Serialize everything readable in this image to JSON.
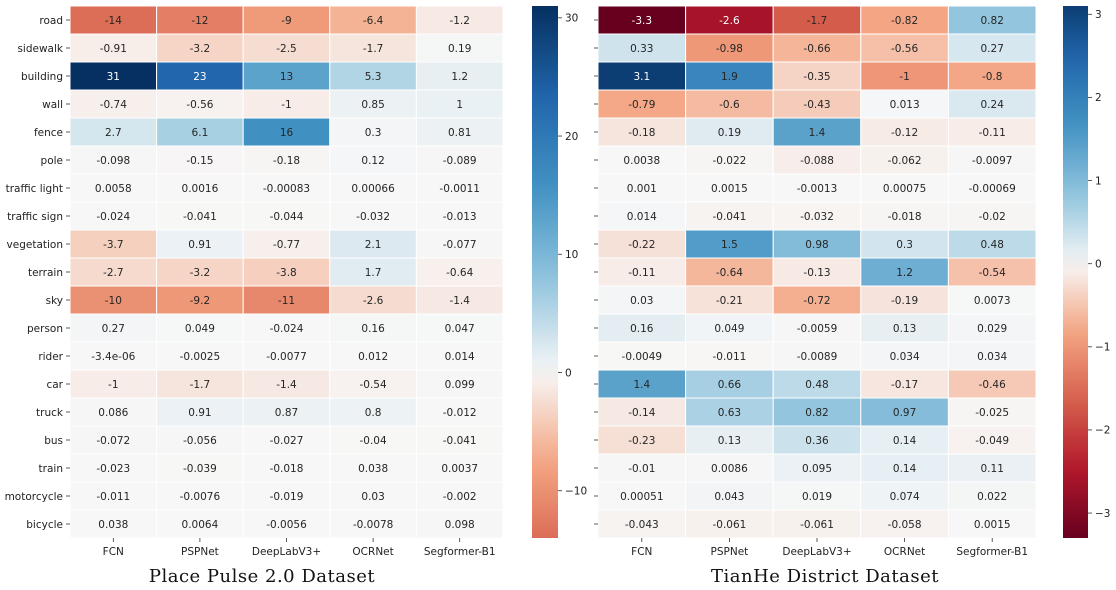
{
  "figure": {
    "rows": [
      "road",
      "sidewalk",
      "building",
      "wall",
      "fence",
      "pole",
      "traffic light",
      "traffic sign",
      "vegetation",
      "terrain",
      "sky",
      "person",
      "rider",
      "car",
      "truck",
      "bus",
      "train",
      "motorcycle",
      "bicycle"
    ],
    "columns": [
      "FCN",
      "PSPNet",
      "DeepLabV3+",
      "OCRNet",
      "Segformer-B1"
    ]
  },
  "chart_data": [
    {
      "type": "heatmap",
      "title": "Place Pulse 2.0 Dataset",
      "xlabel": "",
      "ylabel": "",
      "colormap": "RdBu",
      "color_range": [
        -14,
        31
      ],
      "center": 0,
      "colorbar_ticks": [
        30,
        20,
        10,
        0,
        -10
      ],
      "rows": [
        "road",
        "sidewalk",
        "building",
        "wall",
        "fence",
        "pole",
        "traffic light",
        "traffic sign",
        "vegetation",
        "terrain",
        "sky",
        "person",
        "rider",
        "car",
        "truck",
        "bus",
        "train",
        "motorcycle",
        "bicycle"
      ],
      "columns": [
        "FCN",
        "PSPNet",
        "DeepLabV3+",
        "OCRNet",
        "Segformer-B1"
      ],
      "values": [
        [
          -14,
          -12,
          -9,
          -6.4,
          -1.2
        ],
        [
          -0.91,
          -3.2,
          -2.5,
          -1.7,
          0.19
        ],
        [
          31,
          23,
          13,
          5.3,
          1.2
        ],
        [
          -0.74,
          -0.56,
          -1,
          0.85,
          1
        ],
        [
          2.7,
          6.1,
          16,
          0.3,
          0.81
        ],
        [
          -0.098,
          -0.15,
          -0.18,
          0.12,
          -0.089
        ],
        [
          0.0058,
          0.0016,
          -0.00083,
          0.00066,
          -0.0011
        ],
        [
          -0.024,
          -0.041,
          -0.044,
          -0.032,
          -0.013
        ],
        [
          -3.7,
          0.91,
          -0.77,
          2.1,
          -0.077
        ],
        [
          -2.7,
          -3.2,
          -3.8,
          1.7,
          -0.64
        ],
        [
          -10,
          -9.2,
          -11,
          -2.6,
          -1.4
        ],
        [
          0.27,
          0.049,
          -0.024,
          0.16,
          0.047
        ],
        [
          -3.4e-06,
          -0.0025,
          -0.0077,
          0.012,
          0.014
        ],
        [
          -1,
          -1.7,
          -1.4,
          -0.54,
          0.099
        ],
        [
          0.086,
          0.91,
          0.87,
          0.8,
          -0.012
        ],
        [
          -0.072,
          -0.056,
          -0.027,
          -0.04,
          -0.041
        ],
        [
          -0.023,
          -0.039,
          -0.018,
          0.038,
          0.0037
        ],
        [
          -0.011,
          -0.0076,
          -0.019,
          0.03,
          -0.002
        ],
        [
          0.038,
          0.0064,
          -0.0056,
          -0.0078,
          0.098
        ]
      ],
      "labels": [
        [
          "-14",
          "-12",
          "-9",
          "-6.4",
          "-1.2"
        ],
        [
          "-0.91",
          "-3.2",
          "-2.5",
          "-1.7",
          "0.19"
        ],
        [
          "31",
          "23",
          "13",
          "5.3",
          "1.2"
        ],
        [
          "-0.74",
          "-0.56",
          "-1",
          "0.85",
          "1"
        ],
        [
          "2.7",
          "6.1",
          "16",
          "0.3",
          "0.81"
        ],
        [
          "-0.098",
          "-0.15",
          "-0.18",
          "0.12",
          "-0.089"
        ],
        [
          "0.0058",
          "0.0016",
          "-0.00083",
          "0.00066",
          "-0.0011"
        ],
        [
          "-0.024",
          "-0.041",
          "-0.044",
          "-0.032",
          "-0.013"
        ],
        [
          "-3.7",
          "0.91",
          "-0.77",
          "2.1",
          "-0.077"
        ],
        [
          "-2.7",
          "-3.2",
          "-3.8",
          "1.7",
          "-0.64"
        ],
        [
          "-10",
          "-9.2",
          "-11",
          "-2.6",
          "-1.4"
        ],
        [
          "0.27",
          "0.049",
          "-0.024",
          "0.16",
          "0.047"
        ],
        [
          "-3.4e-06",
          "-0.0025",
          "-0.0077",
          "0.012",
          "0.014"
        ],
        [
          "-1",
          "-1.7",
          "-1.4",
          "-0.54",
          "0.099"
        ],
        [
          "0.086",
          "0.91",
          "0.87",
          "0.8",
          "-0.012"
        ],
        [
          "-0.072",
          "-0.056",
          "-0.027",
          "-0.04",
          "-0.041"
        ],
        [
          "-0.023",
          "-0.039",
          "-0.018",
          "0.038",
          "0.0037"
        ],
        [
          "-0.011",
          "-0.0076",
          "-0.019",
          "0.03",
          "-0.002"
        ],
        [
          "0.038",
          "0.0064",
          "-0.0056",
          "-0.0078",
          "0.098"
        ]
      ]
    },
    {
      "type": "heatmap",
      "title": "TianHe District Dataset",
      "xlabel": "",
      "ylabel": "",
      "colormap": "RdBu",
      "color_range": [
        -3.3,
        3.1
      ],
      "center": 0,
      "colorbar_ticks": [
        3,
        2,
        1,
        0,
        -1,
        -2,
        -3
      ],
      "rows": [
        "road",
        "sidewalk",
        "building",
        "wall",
        "fence",
        "pole",
        "traffic light",
        "traffic sign",
        "vegetation",
        "terrain",
        "sky",
        "person",
        "rider",
        "car",
        "truck",
        "bus",
        "train",
        "motorcycle",
        "bicycle"
      ],
      "columns": [
        "FCN",
        "PSPNet",
        "DeepLabV3+",
        "OCRNet",
        "Segformer-B1"
      ],
      "values": [
        [
          -3.3,
          -2.6,
          -1.7,
          -0.82,
          0.82
        ],
        [
          0.33,
          -0.98,
          -0.66,
          -0.56,
          0.27
        ],
        [
          3.1,
          1.9,
          -0.35,
          -1,
          -0.8
        ],
        [
          -0.79,
          -0.6,
          -0.43,
          0.013,
          0.24
        ],
        [
          -0.18,
          0.19,
          1.4,
          -0.12,
          -0.11
        ],
        [
          0.0038,
          -0.022,
          -0.088,
          -0.062,
          -0.0097
        ],
        [
          0.001,
          0.0015,
          -0.0013,
          0.00075,
          -0.00069
        ],
        [
          0.014,
          -0.041,
          -0.032,
          -0.018,
          -0.02
        ],
        [
          -0.22,
          1.5,
          0.98,
          0.3,
          0.48
        ],
        [
          -0.11,
          -0.64,
          -0.13,
          1.2,
          -0.54
        ],
        [
          0.03,
          -0.21,
          -0.72,
          -0.19,
          0.0073
        ],
        [
          0.16,
          0.049,
          -0.0059,
          0.13,
          0.029
        ],
        [
          -0.0049,
          -0.011,
          -0.0089,
          0.034,
          0.034
        ],
        [
          1.4,
          0.66,
          0.48,
          -0.17,
          -0.46
        ],
        [
          -0.14,
          0.63,
          0.82,
          0.97,
          -0.025
        ],
        [
          -0.23,
          0.13,
          0.36,
          0.14,
          -0.049
        ],
        [
          -0.01,
          0.0086,
          0.095,
          0.14,
          0.11
        ],
        [
          0.00051,
          0.043,
          0.019,
          0.074,
          0.022
        ],
        [
          -0.043,
          -0.061,
          -0.061,
          -0.058,
          0.0015
        ]
      ],
      "labels": [
        [
          "-3.3",
          "-2.6",
          "-1.7",
          "-0.82",
          "0.82"
        ],
        [
          "0.33",
          "-0.98",
          "-0.66",
          "-0.56",
          "0.27"
        ],
        [
          "3.1",
          "1.9",
          "-0.35",
          "-1",
          "-0.8"
        ],
        [
          "-0.79",
          "-0.6",
          "-0.43",
          "0.013",
          "0.24"
        ],
        [
          "-0.18",
          "0.19",
          "1.4",
          "-0.12",
          "-0.11"
        ],
        [
          "0.0038",
          "-0.022",
          "-0.088",
          "-0.062",
          "-0.0097"
        ],
        [
          "0.001",
          "0.0015",
          "-0.0013",
          "0.00075",
          "-0.00069"
        ],
        [
          "0.014",
          "-0.041",
          "-0.032",
          "-0.018",
          "-0.02"
        ],
        [
          "-0.22",
          "1.5",
          "0.98",
          "0.3",
          "0.48"
        ],
        [
          "-0.11",
          "-0.64",
          "-0.13",
          "1.2",
          "-0.54"
        ],
        [
          "0.03",
          "-0.21",
          "-0.72",
          "-0.19",
          "0.0073"
        ],
        [
          "0.16",
          "0.049",
          "-0.0059",
          "0.13",
          "0.029"
        ],
        [
          "-0.0049",
          "-0.011",
          "-0.0089",
          "0.034",
          "0.034"
        ],
        [
          "1.4",
          "0.66",
          "0.48",
          "-0.17",
          "-0.46"
        ],
        [
          "-0.14",
          "0.63",
          "0.82",
          "0.97",
          "-0.025"
        ],
        [
          "-0.23",
          "0.13",
          "0.36",
          "0.14",
          "-0.049"
        ],
        [
          "-0.01",
          "0.0086",
          "0.095",
          "0.14",
          "0.11"
        ],
        [
          "0.00051",
          "0.043",
          "0.019",
          "0.074",
          "0.022"
        ],
        [
          "-0.043",
          "-0.061",
          "-0.061",
          "-0.058",
          "0.0015"
        ]
      ]
    }
  ]
}
